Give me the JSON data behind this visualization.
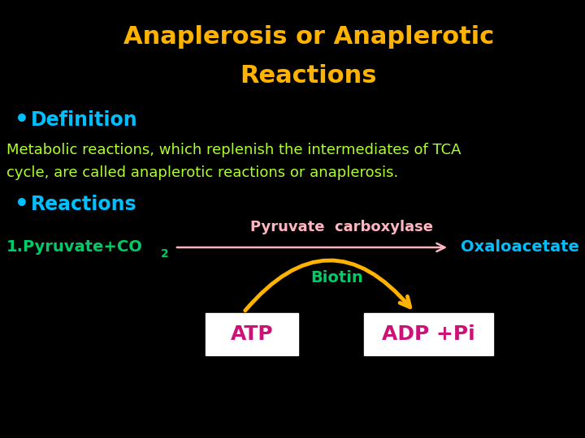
{
  "background_color": "#000000",
  "title_line1": "Anaplerosis or Anaplerotic",
  "title_line2": "Reactions",
  "title_color": "#FFB300",
  "bullet_color": "#00BFFF",
  "definition_label": "Definition",
  "definition_text1": "Metabolic reactions, which replenish the intermediates of TCA",
  "definition_text2": "cycle, are called anaplerotic reactions or anaplerosis.",
  "definition_text_color": "#ADFF2F",
  "reactions_label": "Reactions",
  "reaction1_left": "1.Pyruvate+CO",
  "reaction1_sub": "2",
  "reaction1_color": "#00CC66",
  "enzyme_label": "Pyruvate  carboxylase",
  "enzyme_color": "#FFB6C1",
  "product_label": "Oxaloacetate",
  "product_color": "#00BFFF",
  "biotin_label": "Biotin",
  "biotin_color": "#00CC66",
  "atp_label": "ATP",
  "adp_label": "ADP +Pi",
  "box_color": "#FFFFFF",
  "box_text_color": "#CC1177",
  "arrow_main_color": "#FFB6C1",
  "arrow_biotin_color": "#FFB300"
}
